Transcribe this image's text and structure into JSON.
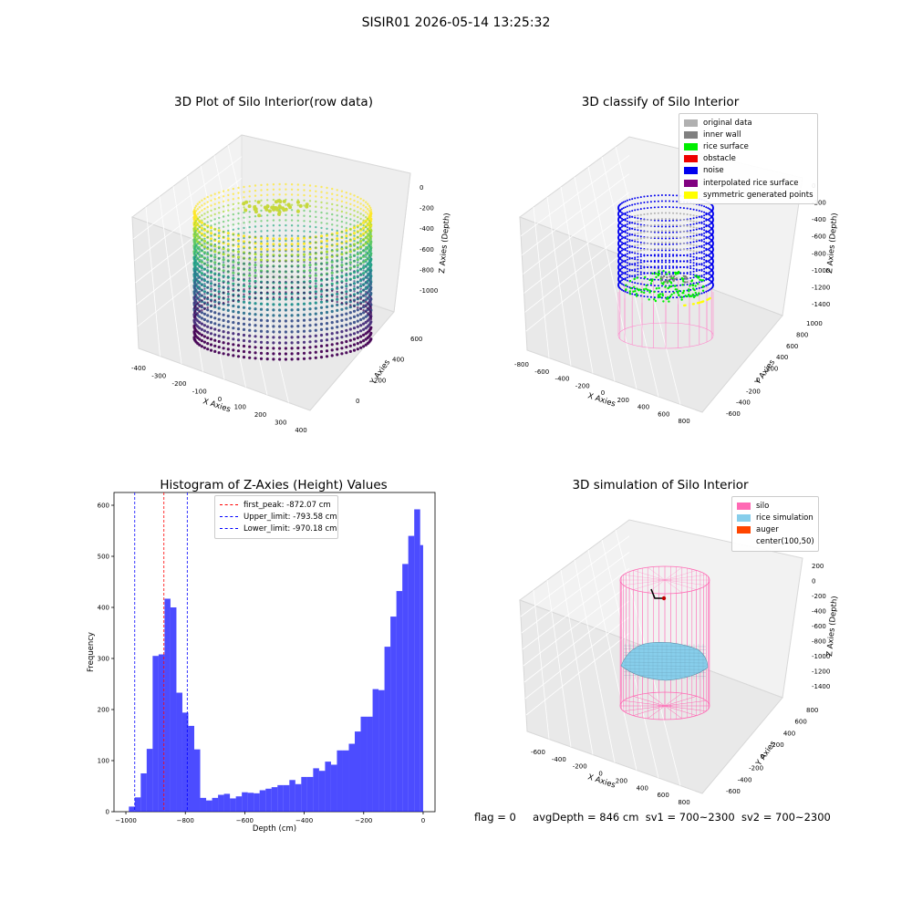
{
  "suptitle": "SISIR01 2026-05-14 13:25:32",
  "panels": {
    "raw": {
      "title": "3D Plot of Silo Interior(row data)",
      "xlabel": "X Axies",
      "ylabel": "Y Axies",
      "zlabel": "Z Axies (Depth)",
      "xticks": [
        "-400",
        "-300",
        "-200",
        "-100",
        "0",
        "100",
        "200",
        "300",
        "400"
      ],
      "yticks": [
        "0",
        "200",
        "400",
        "600"
      ],
      "zticks": [
        "0",
        "-200",
        "-400",
        "-600",
        "-800",
        "-1000"
      ]
    },
    "classify": {
      "title": "3D classify of Silo Interior",
      "xlabel": "X Axies",
      "ylabel": "Y Axies",
      "zlabel": "Z Axies (Depth)",
      "xticks": [
        "-800",
        "-600",
        "-400",
        "-200",
        "0",
        "200",
        "400",
        "600",
        "800"
      ],
      "yticks": [
        "-600",
        "-400",
        "-200",
        "0",
        "200",
        "400",
        "600",
        "800",
        "1000"
      ],
      "zticks": [
        "0",
        "-200",
        "-400",
        "-600",
        "-800",
        "-1000",
        "-1200",
        "-1400"
      ],
      "legend": [
        {
          "label": "original data",
          "color": "#b0b0b0"
        },
        {
          "label": "inner wall",
          "color": "#808080"
        },
        {
          "label": "rice surface",
          "color": "#00ee00"
        },
        {
          "label": "obstacle",
          "color": "#ee0000"
        },
        {
          "label": "noise",
          "color": "#0000ee"
        },
        {
          "label": "interpolated rice surface",
          "color": "#800080"
        },
        {
          "label": "symmetric generated points",
          "color": "#ffff00"
        }
      ]
    },
    "simulation": {
      "title": "3D simulation of Silo Interior",
      "xlabel": "X Axies",
      "ylabel": "Y Axies",
      "zlabel": "Z Axies (Depth)",
      "xticks": [
        "-600",
        "-400",
        "-200",
        "0",
        "200",
        "400",
        "600",
        "800"
      ],
      "yticks": [
        "-600",
        "-400",
        "-200",
        "0",
        "200",
        "400",
        "600",
        "800"
      ],
      "zticks": [
        "200",
        "0",
        "-200",
        "-400",
        "-600",
        "-800",
        "-1000",
        "-1200",
        "-1400"
      ],
      "legend": [
        {
          "label": "silo",
          "color": "#ff69b4"
        },
        {
          "label": "rice simulation",
          "color": "#87ceeb"
        },
        {
          "label": "auger",
          "color": "#ff4500"
        },
        {
          "label": "center(100,50)",
          "color": ""
        }
      ]
    }
  },
  "status": {
    "flag": "flag = 0",
    "avg": "avgDepth = 846 cm",
    "sv1": "sv1 = 700~2300",
    "sv2": "sv2 = 700~2300"
  },
  "chart_data": [
    {
      "type": "bar",
      "title": "Histogram of Z-Axies (Height) Values",
      "xlabel": "Depth (cm)",
      "ylabel": "Frequency",
      "xlim": [
        -1040,
        40
      ],
      "ylim": [
        0,
        625
      ],
      "xticks": [
        -1000,
        -800,
        -600,
        -400,
        -200,
        0
      ],
      "yticks": [
        0,
        100,
        200,
        300,
        400,
        500,
        600
      ],
      "bar_color": "#0000ff",
      "bins": [
        [
          -990,
          -970,
          10
        ],
        [
          -970,
          -950,
          28
        ],
        [
          -950,
          -930,
          75
        ],
        [
          -930,
          -910,
          123
        ],
        [
          -910,
          -890,
          305
        ],
        [
          -890,
          -870,
          308
        ],
        [
          -870,
          -850,
          417
        ],
        [
          -850,
          -830,
          400
        ],
        [
          -830,
          -810,
          233
        ],
        [
          -810,
          -790,
          194
        ],
        [
          -790,
          -770,
          168
        ],
        [
          -770,
          -750,
          122
        ],
        [
          -750,
          -730,
          27
        ],
        [
          -730,
          -710,
          22
        ],
        [
          -710,
          -690,
          27
        ],
        [
          -690,
          -670,
          33
        ],
        [
          -670,
          -650,
          35
        ],
        [
          -650,
          -630,
          26
        ],
        [
          -630,
          -610,
          30
        ],
        [
          -610,
          -590,
          38
        ],
        [
          -590,
          -570,
          37
        ],
        [
          -570,
          -550,
          36
        ],
        [
          -550,
          -530,
          42
        ],
        [
          -530,
          -510,
          45
        ],
        [
          -510,
          -490,
          48
        ],
        [
          -490,
          -470,
          52
        ],
        [
          -470,
          -450,
          52
        ],
        [
          -450,
          -430,
          62
        ],
        [
          -430,
          -410,
          54
        ],
        [
          -410,
          -390,
          68
        ],
        [
          -390,
          -370,
          68
        ],
        [
          -370,
          -350,
          85
        ],
        [
          -350,
          -330,
          80
        ],
        [
          -330,
          -310,
          98
        ],
        [
          -310,
          -290,
          92
        ],
        [
          -290,
          -270,
          120
        ],
        [
          -270,
          -250,
          120
        ],
        [
          -250,
          -230,
          133
        ],
        [
          -230,
          -210,
          157
        ],
        [
          -210,
          -190,
          186
        ],
        [
          -190,
          -170,
          186
        ],
        [
          -170,
          -150,
          240
        ],
        [
          -150,
          -130,
          238
        ],
        [
          -130,
          -110,
          323
        ],
        [
          -110,
          -90,
          382
        ],
        [
          -90,
          -70,
          432
        ],
        [
          -70,
          -50,
          485
        ],
        [
          -50,
          -30,
          540
        ],
        [
          -30,
          -10,
          592
        ],
        [
          -10,
          0,
          522
        ]
      ],
      "vlines": [
        {
          "label": "first_peak: -872.07 cm",
          "x": -872.07,
          "color": "#ff0000"
        },
        {
          "label": "Upper_limit: -793.58 cm",
          "x": -793.58,
          "color": "#0000ff"
        },
        {
          "label": "Lower_limit: -970.18 cm",
          "x": -970.18,
          "color": "#0000ff"
        }
      ],
      "legend_position": "top-center"
    }
  ]
}
